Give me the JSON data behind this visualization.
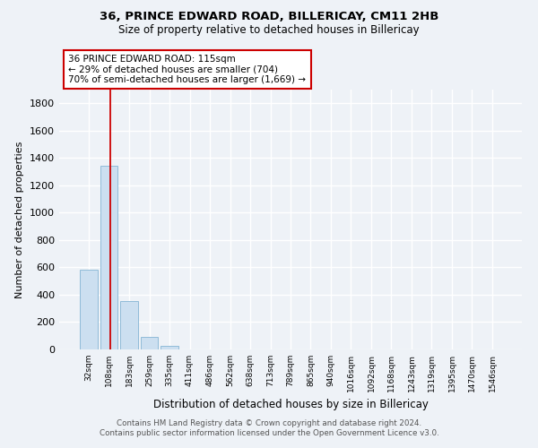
{
  "title1": "36, PRINCE EDWARD ROAD, BILLERICAY, CM11 2HB",
  "title2": "Size of property relative to detached houses in Billericay",
  "xlabel": "Distribution of detached houses by size in Billericay",
  "ylabel": "Number of detached properties",
  "categories": [
    "32sqm",
    "108sqm",
    "183sqm",
    "259sqm",
    "335sqm",
    "411sqm",
    "486sqm",
    "562sqm",
    "638sqm",
    "713sqm",
    "789sqm",
    "865sqm",
    "940sqm",
    "1016sqm",
    "1092sqm",
    "1168sqm",
    "1243sqm",
    "1319sqm",
    "1395sqm",
    "1470sqm",
    "1546sqm"
  ],
  "values": [
    580,
    1340,
    355,
    90,
    25,
    0,
    0,
    0,
    0,
    0,
    0,
    0,
    0,
    0,
    0,
    0,
    0,
    0,
    0,
    0,
    0
  ],
  "bar_color": "#ccdff0",
  "bar_edge_color": "#90bbd8",
  "vline_x": 1.07,
  "vline_color": "#cc0000",
  "annotation_text": "36 PRINCE EDWARD ROAD: 115sqm\n← 29% of detached houses are smaller (704)\n70% of semi-detached houses are larger (1,669) →",
  "annotation_box_color": "#ffffff",
  "annotation_border_color": "#cc0000",
  "ylim": [
    0,
    1900
  ],
  "yticks": [
    0,
    200,
    400,
    600,
    800,
    1000,
    1200,
    1400,
    1600,
    1800
  ],
  "footer1": "Contains HM Land Registry data © Crown copyright and database right 2024.",
  "footer2": "Contains public sector information licensed under the Open Government Licence v3.0.",
  "bg_color": "#eef2f7",
  "grid_color": "#ffffff"
}
